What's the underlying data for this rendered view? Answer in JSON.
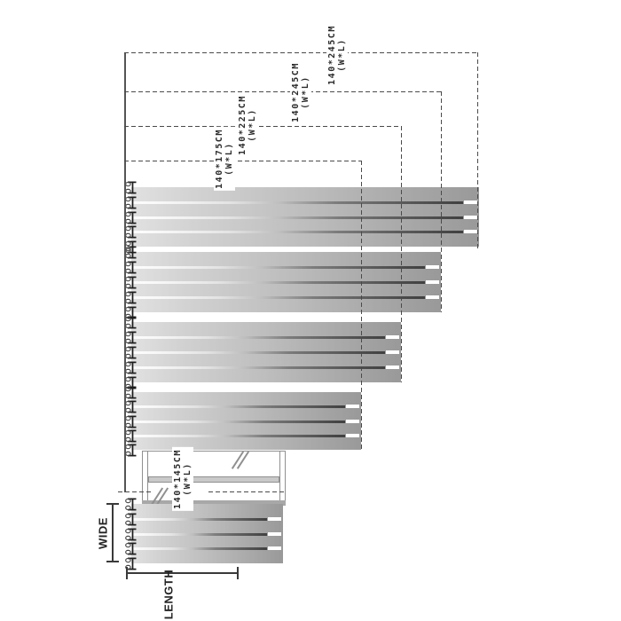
{
  "diagram": {
    "sizes": [
      {
        "dims": "140*245CM",
        "suffix": "(W*L)"
      },
      {
        "dims": "140*245CM",
        "suffix": "(W*L)"
      },
      {
        "dims": "140*225CM",
        "suffix": "(W*L)"
      },
      {
        "dims": "140*175CM",
        "suffix": "(W*L)"
      },
      {
        "dims": "140*145CM",
        "suffix": "(W*L)"
      }
    ],
    "dimension_labels": {
      "wide": "WIDE",
      "length": "LENGTH"
    },
    "colors": {
      "bar_light": "#e1e1e1",
      "bar_dark": "#999999",
      "dash_line": "#4a4a4a",
      "solid_line": "#555555",
      "frame": "#909090",
      "text": "#2b2b2b",
      "background": "#ffffff"
    }
  }
}
